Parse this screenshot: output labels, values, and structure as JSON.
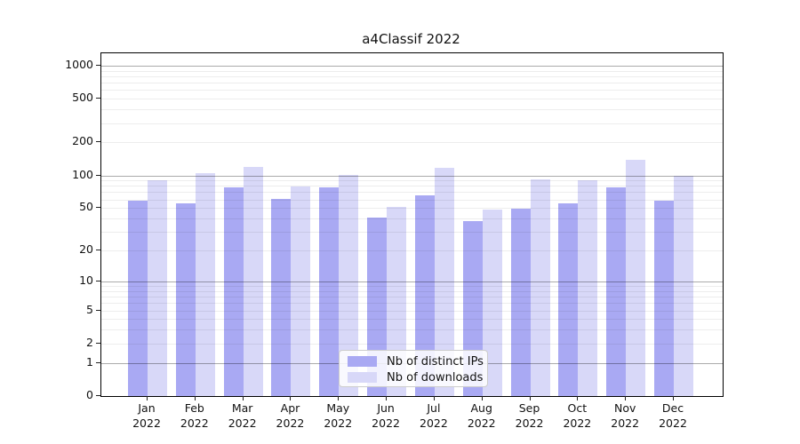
{
  "chart_data": {
    "type": "bar",
    "title": "a4Classif 2022",
    "categories": [
      "Jan",
      "Feb",
      "Mar",
      "Apr",
      "May",
      "Jun",
      "Jul",
      "Aug",
      "Sep",
      "Oct",
      "Nov",
      "Dec"
    ],
    "category_year": "2022",
    "series": [
      {
        "name": "Nb of distinct IPs",
        "color": "#a9a9f3",
        "values": [
          58,
          55,
          77,
          61,
          77,
          41,
          65,
          38,
          49,
          55,
          77,
          58
        ]
      },
      {
        "name": "Nb of downloads",
        "color": "#d8d8f8",
        "values": [
          91,
          104,
          119,
          79,
          101,
          51,
          117,
          48,
          92,
          90,
          140,
          100
        ]
      }
    ],
    "xlabel": "",
    "ylabel": "",
    "yticks": [
      0,
      1,
      2,
      5,
      10,
      20,
      50,
      100,
      200,
      500,
      1000
    ],
    "yscale": "log10(1+v)",
    "ylim": [
      0,
      1300
    ],
    "grid": "major decades dark, log minors light, drawn over bars",
    "legend_position": "inside-bottom-center"
  },
  "colors": {
    "background": "#ffffff",
    "axis": "#000000",
    "text": "#111111",
    "major_grid": "#a8a8a8",
    "minor_grid": "#ebebeb",
    "legend_border": "#cccccc"
  }
}
